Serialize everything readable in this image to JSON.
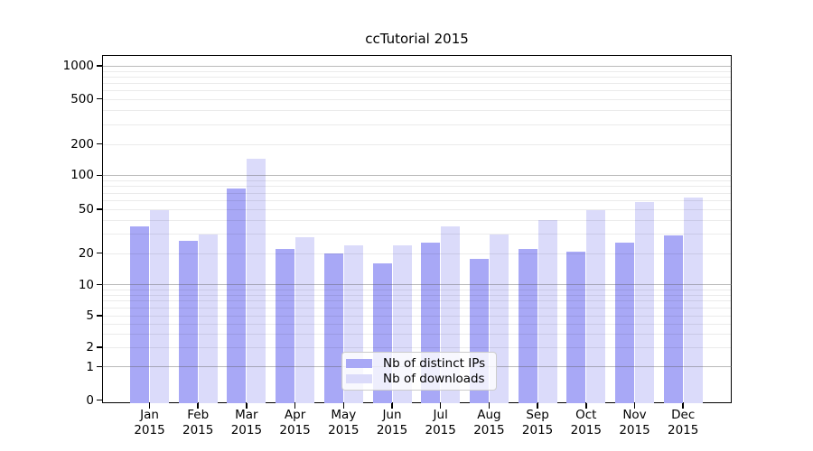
{
  "chart_data": {
    "type": "bar",
    "title": "ccTutorial 2015",
    "categories": [
      "Jan\n2015",
      "Feb\n2015",
      "Mar\n2015",
      "Apr\n2015",
      "May\n2015",
      "Jun\n2015",
      "Jul\n2015",
      "Aug\n2015",
      "Sep\n2015",
      "Oct\n2015",
      "Nov\n2015",
      "Dec\n2015"
    ],
    "series": [
      {
        "name": "Nb of distinct IPs",
        "color": "#a8a8f6",
        "values": [
          35,
          26,
          77,
          22,
          20,
          16,
          25,
          18,
          22,
          21,
          25,
          29
        ]
      },
      {
        "name": "Nb of downloads",
        "color": "#dbdbfa",
        "values": [
          50,
          30,
          145,
          28,
          24,
          24,
          35,
          30,
          40,
          50,
          58,
          64
        ]
      }
    ],
    "xlabel": "",
    "ylabel": "",
    "y_axis": {
      "scale": "symlog",
      "range": [
        0,
        1260
      ],
      "tick_values": [
        0,
        1,
        2,
        5,
        10,
        20,
        50,
        100,
        200,
        500,
        1000
      ],
      "tick_labels": [
        "0",
        "1",
        "2",
        "5",
        "10",
        "20",
        "50",
        "100",
        "200",
        "500",
        "1000"
      ],
      "major_gridlines": [
        1,
        10,
        100,
        1000
      ],
      "minor_gridlines": [
        2,
        3,
        4,
        5,
        6,
        7,
        8,
        9,
        20,
        30,
        40,
        50,
        60,
        70,
        80,
        90,
        200,
        300,
        400,
        500,
        600,
        700,
        800,
        900
      ]
    },
    "grid": true,
    "legend": {
      "position": "lower-center"
    }
  },
  "colors": {
    "bar_ips": "#a8a8f6",
    "bar_downloads": "#dbdbfa",
    "axis": "#000000",
    "major_grid": "#8c8c8c",
    "minor_grid": "#e8e8e8"
  }
}
